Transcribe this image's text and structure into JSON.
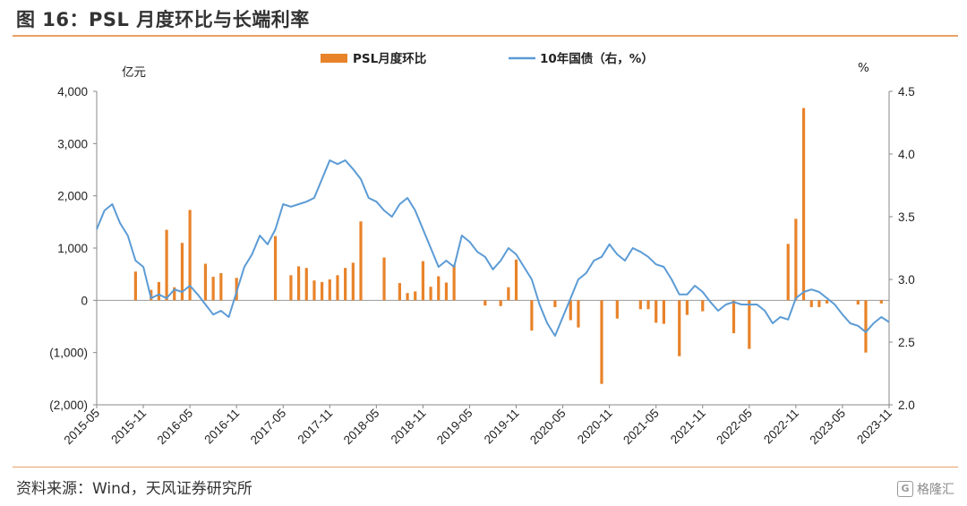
{
  "header": {
    "title": "图 16：PSL 月度环比与长端利率"
  },
  "footer": {
    "source": "资料来源：Wind，天风证券研究所",
    "watermark": "格隆汇",
    "watermark_logo": "G"
  },
  "chart_data": {
    "type": "bar+line",
    "title": "",
    "left_axis": {
      "unit": "亿元",
      "ylim": [
        -2000,
        4000
      ],
      "ticks": [
        4000,
        3000,
        2000,
        1000,
        0,
        -1000,
        -2000
      ],
      "tick_labels": [
        "4,000",
        "3,000",
        "2,000",
        "1,000",
        "0",
        "(1,000)",
        "(2,000)"
      ]
    },
    "right_axis": {
      "unit": "%",
      "ylim": [
        2.0,
        4.5
      ],
      "ticks": [
        4.5,
        4.0,
        3.5,
        3.0,
        2.5,
        2.0
      ],
      "tick_labels": [
        "4.5",
        "4.0",
        "3.5",
        "3.0",
        "2.5",
        "2.0"
      ]
    },
    "x_axis": {
      "start": "2015-05",
      "end": "2023-11",
      "tick_labels": [
        "2015-05",
        "2015-11",
        "2016-05",
        "2016-11",
        "2017-05",
        "2017-11",
        "2018-05",
        "2018-11",
        "2019-05",
        "2019-11",
        "2020-05",
        "2020-11",
        "2021-05",
        "2021-11",
        "2022-05",
        "2022-11",
        "2023-05",
        "2023-11"
      ]
    },
    "legend": {
      "placement": "top-center"
    },
    "series": [
      {
        "name": "PSL月度环比",
        "type": "bar",
        "axis": "left",
        "color": "#e8832a",
        "values": [
          [
            "2015-10",
            550
          ],
          [
            "2015-12",
            200
          ],
          [
            "2016-01",
            350
          ],
          [
            "2016-02",
            1350
          ],
          [
            "2016-03",
            250
          ],
          [
            "2016-04",
            1100
          ],
          [
            "2016-05",
            1730
          ],
          [
            "2016-07",
            700
          ],
          [
            "2016-08",
            450
          ],
          [
            "2016-09",
            520
          ],
          [
            "2016-11",
            430
          ],
          [
            "2017-04",
            1230
          ],
          [
            "2017-06",
            480
          ],
          [
            "2017-07",
            650
          ],
          [
            "2017-08",
            620
          ],
          [
            "2017-09",
            380
          ],
          [
            "2017-10",
            350
          ],
          [
            "2017-11",
            400
          ],
          [
            "2017-12",
            480
          ],
          [
            "2018-01",
            620
          ],
          [
            "2018-02",
            720
          ],
          [
            "2018-03",
            1510
          ],
          [
            "2018-06",
            820
          ],
          [
            "2018-08",
            330
          ],
          [
            "2018-09",
            140
          ],
          [
            "2018-10",
            170
          ],
          [
            "2018-11",
            750
          ],
          [
            "2018-12",
            260
          ],
          [
            "2019-01",
            460
          ],
          [
            "2019-02",
            340
          ],
          [
            "2019-03",
            680
          ],
          [
            "2019-07",
            -100
          ],
          [
            "2019-09",
            -110
          ],
          [
            "2019-10",
            250
          ],
          [
            "2019-11",
            780
          ],
          [
            "2020-01",
            -580
          ],
          [
            "2020-04",
            -130
          ],
          [
            "2020-06",
            -380
          ],
          [
            "2020-07",
            -520
          ],
          [
            "2020-10",
            -1600
          ],
          [
            "2020-12",
            -350
          ],
          [
            "2021-03",
            -170
          ],
          [
            "2021-04",
            -170
          ],
          [
            "2021-05",
            -430
          ],
          [
            "2021-06",
            -450
          ],
          [
            "2021-08",
            -1070
          ],
          [
            "2021-09",
            -280
          ],
          [
            "2021-11",
            -210
          ],
          [
            "2022-03",
            -630
          ],
          [
            "2022-05",
            -930
          ],
          [
            "2022-10",
            1080
          ],
          [
            "2022-11",
            1560
          ],
          [
            "2022-12",
            3680
          ],
          [
            "2023-01",
            -130
          ],
          [
            "2023-02",
            -130
          ],
          [
            "2023-03",
            -60
          ],
          [
            "2023-07",
            -80
          ],
          [
            "2023-08",
            -1000
          ],
          [
            "2023-10",
            -60
          ]
        ]
      },
      {
        "name": "10年国债（右，%）",
        "type": "line",
        "axis": "right",
        "color": "#5b9bd5",
        "values": [
          [
            "2015-05",
            3.4
          ],
          [
            "2015-06",
            3.55
          ],
          [
            "2015-07",
            3.6
          ],
          [
            "2015-08",
            3.45
          ],
          [
            "2015-09",
            3.35
          ],
          [
            "2015-10",
            3.15
          ],
          [
            "2015-11",
            3.1
          ],
          [
            "2015-12",
            2.85
          ],
          [
            "2016-01",
            2.88
          ],
          [
            "2016-02",
            2.85
          ],
          [
            "2016-03",
            2.92
          ],
          [
            "2016-04",
            2.9
          ],
          [
            "2016-05",
            2.95
          ],
          [
            "2016-06",
            2.88
          ],
          [
            "2016-07",
            2.8
          ],
          [
            "2016-08",
            2.72
          ],
          [
            "2016-09",
            2.75
          ],
          [
            "2016-10",
            2.7
          ],
          [
            "2016-11",
            2.9
          ],
          [
            "2016-12",
            3.1
          ],
          [
            "2017-01",
            3.2
          ],
          [
            "2017-02",
            3.35
          ],
          [
            "2017-03",
            3.28
          ],
          [
            "2017-04",
            3.4
          ],
          [
            "2017-05",
            3.6
          ],
          [
            "2017-06",
            3.58
          ],
          [
            "2017-07",
            3.6
          ],
          [
            "2017-08",
            3.62
          ],
          [
            "2017-09",
            3.65
          ],
          [
            "2017-10",
            3.8
          ],
          [
            "2017-11",
            3.95
          ],
          [
            "2017-12",
            3.92
          ],
          [
            "2018-01",
            3.95
          ],
          [
            "2018-02",
            3.88
          ],
          [
            "2018-03",
            3.8
          ],
          [
            "2018-04",
            3.65
          ],
          [
            "2018-05",
            3.62
          ],
          [
            "2018-06",
            3.55
          ],
          [
            "2018-07",
            3.5
          ],
          [
            "2018-08",
            3.6
          ],
          [
            "2018-09",
            3.65
          ],
          [
            "2018-10",
            3.55
          ],
          [
            "2018-11",
            3.4
          ],
          [
            "2018-12",
            3.25
          ],
          [
            "2019-01",
            3.1
          ],
          [
            "2019-02",
            3.15
          ],
          [
            "2019-03",
            3.1
          ],
          [
            "2019-04",
            3.35
          ],
          [
            "2019-05",
            3.3
          ],
          [
            "2019-06",
            3.22
          ],
          [
            "2019-07",
            3.18
          ],
          [
            "2019-08",
            3.08
          ],
          [
            "2019-09",
            3.15
          ],
          [
            "2019-10",
            3.25
          ],
          [
            "2019-11",
            3.2
          ],
          [
            "2019-12",
            3.1
          ],
          [
            "2020-01",
            3.0
          ],
          [
            "2020-02",
            2.8
          ],
          [
            "2020-03",
            2.65
          ],
          [
            "2020-04",
            2.55
          ],
          [
            "2020-05",
            2.7
          ],
          [
            "2020-06",
            2.85
          ],
          [
            "2020-07",
            3.0
          ],
          [
            "2020-08",
            3.05
          ],
          [
            "2020-09",
            3.15
          ],
          [
            "2020-10",
            3.18
          ],
          [
            "2020-11",
            3.28
          ],
          [
            "2020-12",
            3.2
          ],
          [
            "2021-01",
            3.15
          ],
          [
            "2021-02",
            3.25
          ],
          [
            "2021-03",
            3.22
          ],
          [
            "2021-04",
            3.18
          ],
          [
            "2021-05",
            3.12
          ],
          [
            "2021-06",
            3.1
          ],
          [
            "2021-07",
            3.0
          ],
          [
            "2021-08",
            2.88
          ],
          [
            "2021-09",
            2.88
          ],
          [
            "2021-10",
            2.95
          ],
          [
            "2021-11",
            2.9
          ],
          [
            "2021-12",
            2.82
          ],
          [
            "2022-01",
            2.75
          ],
          [
            "2022-02",
            2.8
          ],
          [
            "2022-03",
            2.82
          ],
          [
            "2022-04",
            2.8
          ],
          [
            "2022-05",
            2.8
          ],
          [
            "2022-06",
            2.8
          ],
          [
            "2022-07",
            2.75
          ],
          [
            "2022-08",
            2.65
          ],
          [
            "2022-09",
            2.7
          ],
          [
            "2022-10",
            2.68
          ],
          [
            "2022-11",
            2.85
          ],
          [
            "2022-12",
            2.9
          ],
          [
            "2023-01",
            2.92
          ],
          [
            "2023-02",
            2.9
          ],
          [
            "2023-03",
            2.85
          ],
          [
            "2023-04",
            2.8
          ],
          [
            "2023-05",
            2.72
          ],
          [
            "2023-06",
            2.65
          ],
          [
            "2023-07",
            2.63
          ],
          [
            "2023-08",
            2.58
          ],
          [
            "2023-09",
            2.65
          ],
          [
            "2023-10",
            2.7
          ],
          [
            "2023-11",
            2.66
          ]
        ]
      }
    ]
  }
}
